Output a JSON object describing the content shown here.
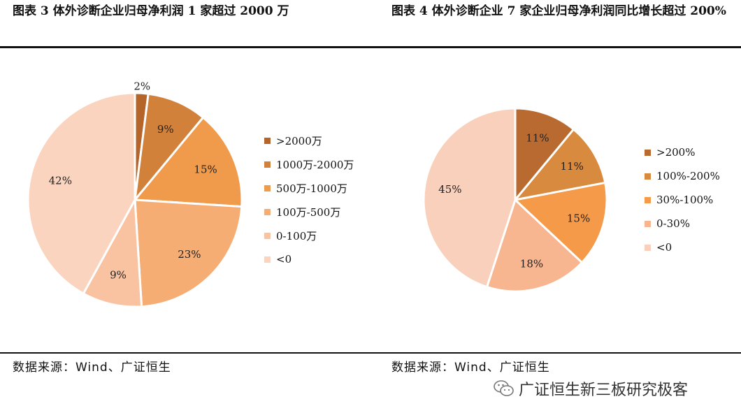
{
  "left_title": "图表 3 体外诊断企业归母净利润 1 家超过 2000 万",
  "right_title": "图表 4 体外诊断企业 7 家企业归母净利润同比增长超过 200%",
  "left_source": "数据来源：Wind、广证恒生",
  "right_source": "数据来源：Wind、广证恒生",
  "watermark": "广证恒生新三板研究极客",
  "watermark_icon": "wechat-icon",
  "chart_data": [
    {
      "type": "pie",
      "title": "图表 3 体外诊断企业归母净利润 1 家超过 2000 万",
      "legend_position": "right",
      "slices": [
        {
          "label": ">2000万",
          "value": 2,
          "value_label": "2%",
          "color": "#b5642a"
        },
        {
          "label": "1000万-2000万",
          "value": 9,
          "value_label": "9%",
          "color": "#d2813a"
        },
        {
          "label": "500万-1000万",
          "value": 15,
          "value_label": "15%",
          "color": "#f09a4c"
        },
        {
          "label": "100万-500万",
          "value": 23,
          "value_label": "23%",
          "color": "#f6ad74"
        },
        {
          "label": "0-100万",
          "value": 9,
          "value_label": "9%",
          "color": "#f9c2a1"
        },
        {
          "label": "<0",
          "value": 42,
          "value_label": "42%",
          "color": "#fad4bf"
        }
      ]
    },
    {
      "type": "pie",
      "title": "图表 4 体外诊断企业 7 家企业归母净利润同比增长超过 200%",
      "legend_position": "right",
      "slices": [
        {
          "label": ">200%",
          "value": 11,
          "value_label": "11%",
          "color": "#b86a30"
        },
        {
          "label": "100%-200%",
          "value": 11,
          "value_label": "11%",
          "color": "#d88a3e"
        },
        {
          "label": "30%-100%",
          "value": 15,
          "value_label": "15%",
          "color": "#f59a48"
        },
        {
          "label": "0-30%",
          "value": 18,
          "value_label": "18%",
          "color": "#f7b590"
        },
        {
          "label": "<0",
          "value": 45,
          "value_label": "45%",
          "color": "#f9d0bb"
        }
      ]
    }
  ]
}
